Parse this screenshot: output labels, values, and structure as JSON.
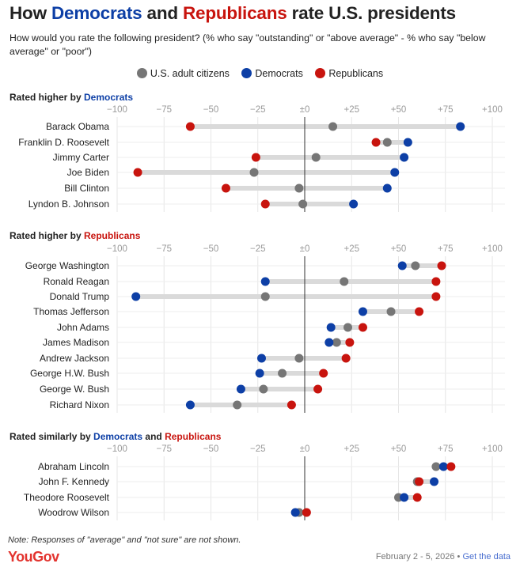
{
  "header": {
    "title_parts": [
      "How ",
      "Democrats",
      " and ",
      "Republicans",
      " rate U.S. presidents"
    ],
    "subtitle": "How would you rate the following president? (% who say \"outstanding\" or \"above average\" - % who say \"below average\" or \"poor\")"
  },
  "colors": {
    "adults": "#767676",
    "democrats": "#0d3fa6",
    "republicans": "#c8140e",
    "track": "#dadada"
  },
  "legend": {
    "adults": "U.S. adult citizens",
    "democrats": "Democrats",
    "republicans": "Republicans"
  },
  "sections": [
    {
      "title_prefix": "Rated higher by ",
      "title_party": "Democrats",
      "title_party2": "",
      "title_mid": ""
    },
    {
      "title_prefix": "Rated higher by ",
      "title_party": "Republicans",
      "title_party2": "",
      "title_mid": ""
    },
    {
      "title_prefix": "Rated similarly by ",
      "title_party": "Democrats",
      "title_mid": " and ",
      "title_party2": "Republicans"
    }
  ],
  "chart_data": {
    "type": "dot",
    "xlim": [
      -100,
      100
    ],
    "ticks": [
      -100,
      -75,
      -50,
      -25,
      0,
      25,
      50,
      75,
      100
    ],
    "tick_labels": [
      "−100",
      "−75",
      "−50",
      "−25",
      "±0",
      "+25",
      "+50",
      "+75",
      "+100"
    ],
    "series_names": [
      "U.S. adult citizens",
      "Democrats",
      "Republicans"
    ],
    "groups": [
      {
        "section": "Rated higher by Democrats",
        "rows": [
          {
            "name": "Barack Obama",
            "adults": 15,
            "democrats": 83,
            "republicans": -61
          },
          {
            "name": "Franklin D. Roosevelt",
            "adults": 44,
            "democrats": 55,
            "republicans": 38
          },
          {
            "name": "Jimmy Carter",
            "adults": 6,
            "democrats": 53,
            "republicans": -26
          },
          {
            "name": "Joe Biden",
            "adults": -27,
            "democrats": 48,
            "republicans": -89
          },
          {
            "name": "Bill Clinton",
            "adults": -3,
            "democrats": 44,
            "republicans": -42
          },
          {
            "name": "Lyndon B. Johnson",
            "adults": -1,
            "democrats": 26,
            "republicans": -21
          }
        ]
      },
      {
        "section": "Rated higher by Republicans",
        "rows": [
          {
            "name": "George Washington",
            "adults": 59,
            "democrats": 52,
            "republicans": 73
          },
          {
            "name": "Ronald Reagan",
            "adults": 21,
            "democrats": -21,
            "republicans": 70
          },
          {
            "name": "Donald Trump",
            "adults": -21,
            "democrats": -90,
            "republicans": 70
          },
          {
            "name": "Thomas Jefferson",
            "adults": 46,
            "democrats": 31,
            "republicans": 61
          },
          {
            "name": "John Adams",
            "adults": 23,
            "democrats": 14,
            "republicans": 31
          },
          {
            "name": "James Madison",
            "adults": 17,
            "democrats": 13,
            "republicans": 24
          },
          {
            "name": "Andrew Jackson",
            "adults": -3,
            "democrats": -23,
            "republicans": 22
          },
          {
            "name": "George H.W. Bush",
            "adults": -12,
            "democrats": -24,
            "republicans": 10
          },
          {
            "name": "George W. Bush",
            "adults": -22,
            "democrats": -34,
            "republicans": 7
          },
          {
            "name": "Richard Nixon",
            "adults": -36,
            "democrats": -61,
            "republicans": -7
          }
        ]
      },
      {
        "section": "Rated similarly by Democrats and Republicans",
        "rows": [
          {
            "name": "Abraham Lincoln",
            "adults": 70,
            "democrats": 74,
            "republicans": 78
          },
          {
            "name": "John F. Kennedy",
            "adults": 60,
            "democrats": 69,
            "republicans": 61
          },
          {
            "name": "Theodore Roosevelt",
            "adults": 50,
            "democrats": 53,
            "republicans": 60
          },
          {
            "name": "Woodrow Wilson",
            "adults": -3,
            "democrats": -5,
            "republicans": 1
          }
        ]
      }
    ]
  },
  "footer": {
    "note": "Note: Responses of \"average\" and \"not sure\" are not shown.",
    "logo": "YouGov",
    "date": "February 2 - 5, 2026",
    "separator": " • ",
    "link": "Get the data"
  }
}
